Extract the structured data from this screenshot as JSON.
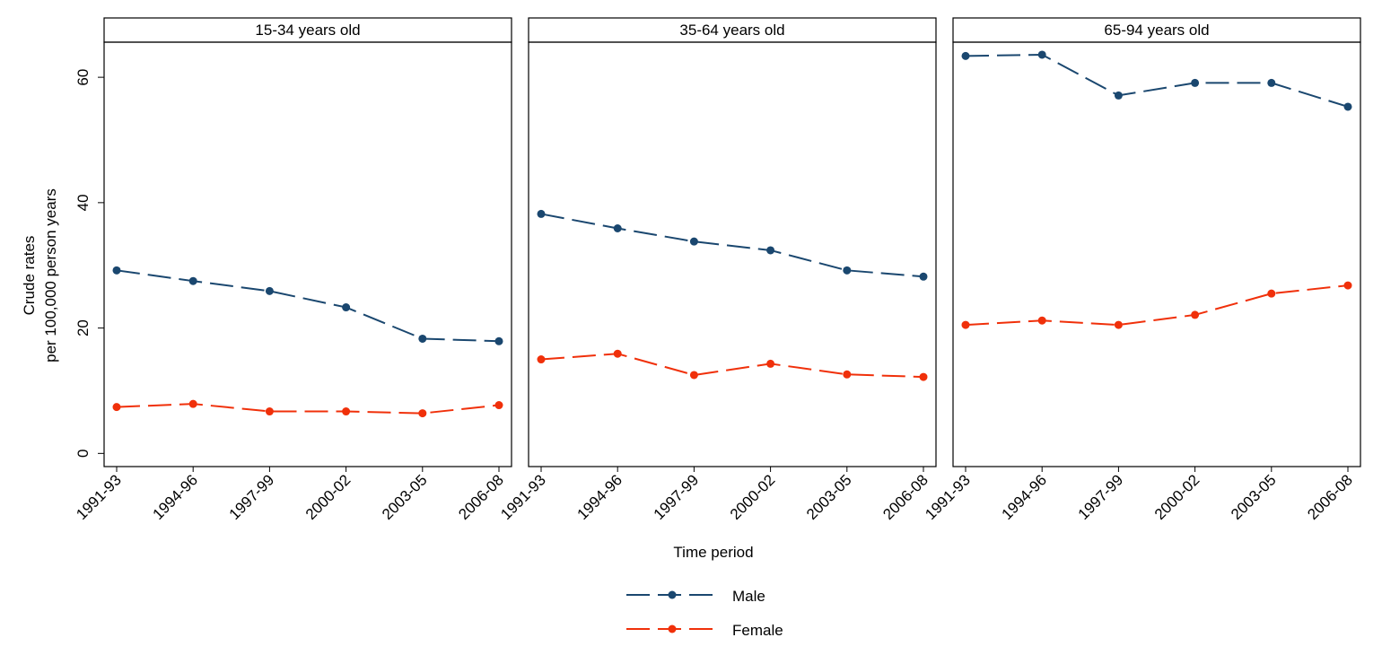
{
  "chart_data": {
    "type": "line",
    "ylabel": [
      "Crude rates",
      "per 100,000 person years"
    ],
    "xlabel": "Time period",
    "categories": [
      "1991-93",
      "1994-96",
      "1997-99",
      "2000-02",
      "2003-05",
      "2006-08"
    ],
    "series": [
      {
        "name": "Male",
        "color": "#1a476f"
      },
      {
        "name": "Female",
        "color": "#f0300a"
      }
    ],
    "ylim": [
      -2.1,
      65.6
    ],
    "yticks": [
      0,
      20,
      40,
      60
    ],
    "grid": false,
    "panels": [
      {
        "title": "15-34 years old",
        "values": [
          [
            29.2,
            27.5,
            25.9,
            23.3,
            18.3,
            17.9
          ],
          [
            7.4,
            7.9,
            6.7,
            6.7,
            6.4,
            7.7
          ]
        ]
      },
      {
        "title": "35-64 years old",
        "values": [
          [
            38.2,
            35.9,
            33.8,
            32.4,
            29.2,
            28.2
          ],
          [
            15.0,
            15.9,
            12.5,
            14.3,
            12.6,
            12.2
          ]
        ]
      },
      {
        "title": "65-94 years old",
        "values": [
          [
            63.4,
            63.6,
            57.1,
            59.1,
            59.1,
            55.3
          ],
          [
            20.5,
            21.2,
            20.5,
            22.1,
            25.5,
            26.8
          ]
        ]
      }
    ]
  }
}
